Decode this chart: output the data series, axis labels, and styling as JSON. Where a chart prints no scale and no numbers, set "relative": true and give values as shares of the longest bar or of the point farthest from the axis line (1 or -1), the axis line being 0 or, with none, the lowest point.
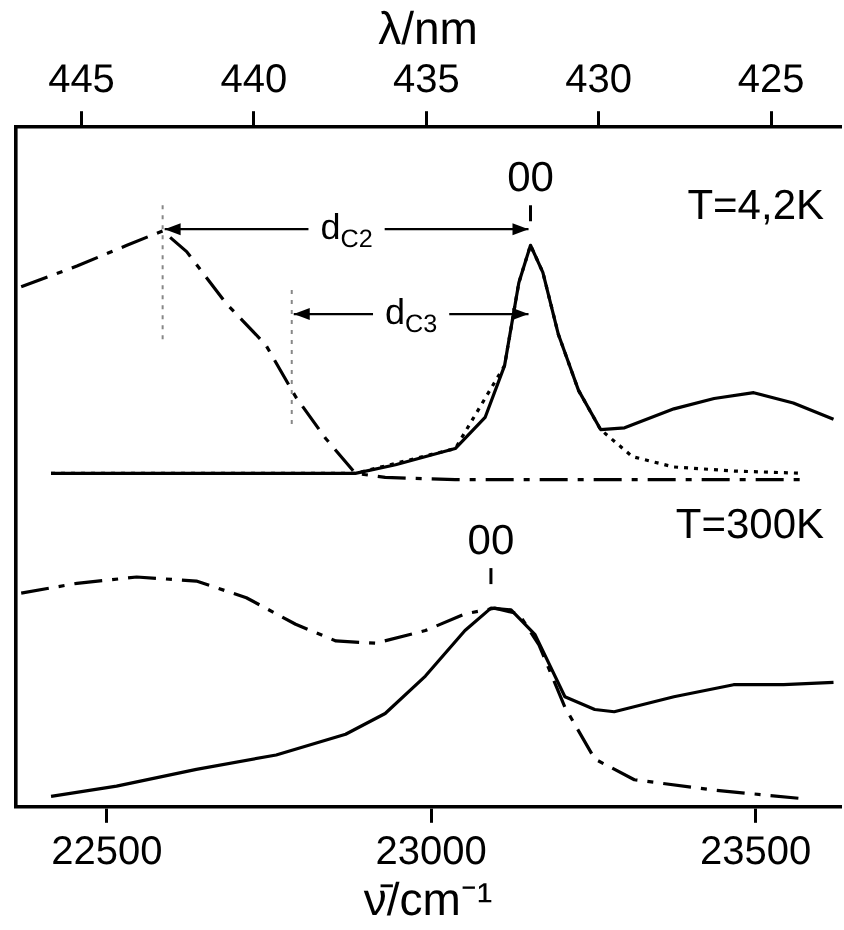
{
  "chart_data": {
    "type": "line",
    "xlabel": "ν̄/cm⁻¹",
    "x2label": "λ/nm",
    "relative": true,
    "xlim": [
      22360,
      23630
    ],
    "xticks": [
      22500,
      23000,
      23500
    ],
    "x2lim": [
      446.9,
      423
    ],
    "x2ticks": [
      445,
      440,
      435,
      430,
      425
    ],
    "tick_labels": "x",
    "grid": false,
    "legend": false,
    "marker": "none",
    "series": [
      {
        "color": "#000000",
        "line_style": "solid",
        "x": [
          22414,
          22638,
          22883,
          22945,
          23037,
          23083,
          23113,
          23135,
          23153,
          23172,
          23196,
          23227,
          23261,
          23298,
          23374,
          23436,
          23497,
          23558,
          23620
        ],
        "values": [
          0.579,
          0.579,
          0.579,
          0.594,
          0.622,
          0.676,
          0.766,
          0.91,
          0.975,
          0.928,
          0.82,
          0.723,
          0.655,
          0.658,
          0.691,
          0.709,
          0.719,
          0.701,
          0.673
        ]
      },
      {
        "color": "#000000",
        "line_style": "dotted",
        "x": [
          22414,
          22883,
          23037,
          23113,
          23135,
          23153,
          23172,
          23196,
          23227,
          23261,
          23310,
          23374,
          23467,
          23574
        ],
        "values": [
          0.579,
          0.579,
          0.622,
          0.766,
          0.91,
          0.975,
          0.928,
          0.82,
          0.723,
          0.655,
          0.608,
          0.59,
          0.583,
          0.579
        ]
      },
      {
        "color": "#000000",
        "line_style": "dashed",
        "x": [
          22368,
          22454,
          22531,
          22586,
          22623,
          22684,
          22745,
          22791,
          22837,
          22883,
          22929,
          23037,
          23252,
          23574
        ],
        "values": [
          0.903,
          0.939,
          0.975,
          1,
          0.964,
          0.874,
          0.802,
          0.712,
          0.64,
          0.579,
          0.572,
          0.568,
          0.568,
          0.568
        ]
      },
      {
        "color": "#000000",
        "line_style": "dashed",
        "x": [
          22368,
          22454,
          22546,
          22638,
          22715,
          22791,
          22853,
          22914,
          22991,
          23052,
          23098,
          23135,
          23166,
          23206,
          23252,
          23313,
          23436,
          23574
        ],
        "values": [
          0.371,
          0.388,
          0.399,
          0.392,
          0.363,
          0.317,
          0.288,
          0.284,
          0.306,
          0.335,
          0.345,
          0.335,
          0.281,
          0.173,
          0.083,
          0.047,
          0.029,
          0.014
        ]
      },
      {
        "color": "#000000",
        "line_style": "solid",
        "x": [
          22414,
          22515,
          22638,
          22761,
          22868,
          22929,
          22991,
          23052,
          23092,
          23123,
          23160,
          23206,
          23252,
          23282,
          23374,
          23466,
          23543,
          23620
        ],
        "values": [
          0.018,
          0.036,
          0.065,
          0.09,
          0.126,
          0.162,
          0.227,
          0.306,
          0.345,
          0.342,
          0.299,
          0.191,
          0.169,
          0.165,
          0.191,
          0.212,
          0.212,
          0.216
        ]
      }
    ],
    "ref_lines": [
      {
        "axis": "x",
        "value": 22586,
        "line_style": "dotted"
      },
      {
        "axis": "x",
        "value": 22785,
        "line_style": "dotted"
      }
    ],
    "annotations": [
      {
        "text": "00",
        "x": 23153,
        "y": 0.975
      },
      {
        "text": "00",
        "x": 23092,
        "y": 0.345
      },
      "T=4,2K",
      "T=300K",
      "d$_{C2}$",
      "d$_{C3}$"
    ]
  }
}
